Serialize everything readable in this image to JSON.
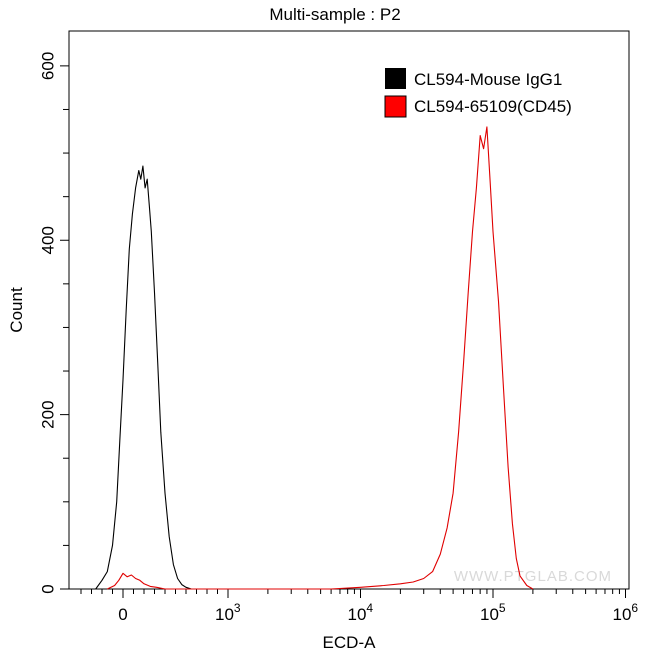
{
  "chart_data": {
    "type": "line",
    "title": "Multi-sample : P2",
    "xlabel": "ECD-A",
    "ylabel": "Count",
    "ylim": [
      0,
      640
    ],
    "xscale": "biexponential",
    "grid": false,
    "legend_position": "top-right",
    "y_ticks": [
      {
        "value": 0,
        "label": "0"
      },
      {
        "value": 200,
        "label": "200"
      },
      {
        "value": 400,
        "label": "400"
      },
      {
        "value": 600,
        "label": "600"
      }
    ],
    "x_ticks": [
      {
        "value": 0,
        "base": "0",
        "exp": ""
      },
      {
        "value": 1000,
        "base": "10",
        "exp": "3"
      },
      {
        "value": 10000,
        "base": "10",
        "exp": "4"
      },
      {
        "value": 100000,
        "base": "10",
        "exp": "5"
      },
      {
        "value": 1000000,
        "base": "10",
        "exp": "6"
      }
    ],
    "series": [
      {
        "name": "CL594-Mouse IgG1",
        "color": "#000000",
        "x": [
          -260,
          -200,
          -150,
          -100,
          -60,
          -30,
          0,
          30,
          60,
          90,
          120,
          150,
          170,
          190,
          210,
          230,
          250,
          270,
          300,
          330,
          360,
          400,
          440,
          480,
          520,
          560,
          600,
          650
        ],
        "y": [
          0,
          10,
          20,
          50,
          100,
          170,
          240,
          320,
          390,
          430,
          460,
          480,
          470,
          485,
          460,
          470,
          440,
          410,
          340,
          260,
          180,
          110,
          60,
          28,
          12,
          5,
          2,
          0
        ]
      },
      {
        "name": "CL594-65109(CD45)",
        "color": "#e00000",
        "x": [
          -150,
          -80,
          -40,
          0,
          40,
          80,
          120,
          160,
          200,
          260,
          320,
          400,
          6000,
          10000,
          15000,
          20000,
          25000,
          30000,
          35000,
          40000,
          45000,
          50000,
          55000,
          60000,
          65000,
          70000,
          75000,
          80000,
          85000,
          90000,
          95000,
          100000,
          110000,
          120000,
          130000,
          140000,
          150000,
          160000,
          180000,
          200000
        ],
        "y": [
          0,
          4,
          10,
          18,
          14,
          16,
          12,
          10,
          6,
          3,
          2,
          0,
          0,
          2,
          4,
          6,
          8,
          12,
          20,
          40,
          70,
          110,
          180,
          260,
          340,
          410,
          460,
          520,
          505,
          530,
          470,
          410,
          330,
          230,
          140,
          75,
          35,
          15,
          4,
          0
        ]
      }
    ]
  },
  "watermark": "WWW.PTGLAB.COM"
}
